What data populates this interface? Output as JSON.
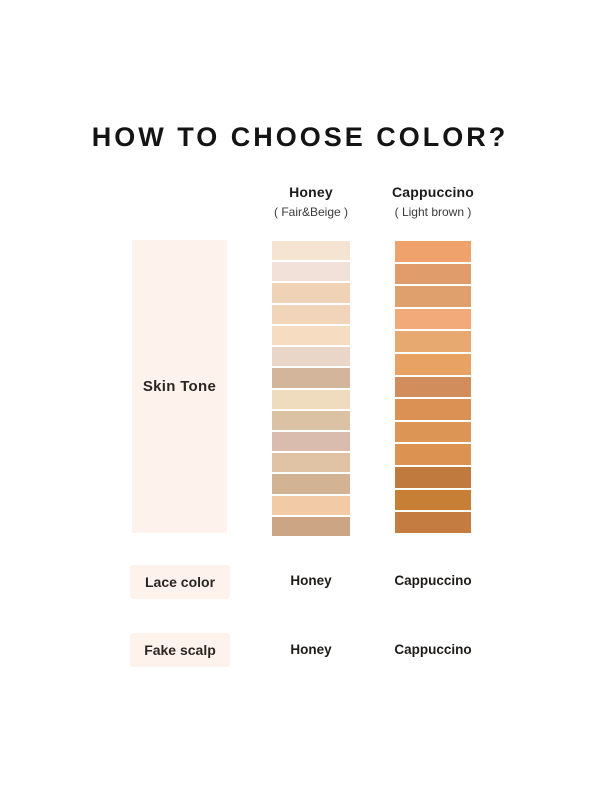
{
  "title": "HOW TO CHOOSE COLOR?",
  "columns": [
    {
      "name": "Honey",
      "subtitle": "( Fair&Beige )",
      "swatches": [
        "#F4E4D1",
        "#F2E1D9",
        "#F0D2B7",
        "#F1D4BA",
        "#F6DCC1",
        "#E9D6C8",
        "#D2B59A",
        "#EFDCBE",
        "#DCC2A5",
        "#D9BCAE",
        "#DFC3A4",
        "#D2B394",
        "#F2CBA6",
        "#CBA584"
      ]
    },
    {
      "name": "Cappuccino",
      "subtitle": "( Light brown )",
      "swatches": [
        "#EFA26B",
        "#E19C6C",
        "#E0A06E",
        "#F2AA7A",
        "#E8A970",
        "#E7A264",
        "#D18D5C",
        "#DC9154",
        "#DD9556",
        "#DC9352",
        "#C07A3E",
        "#C67F35",
        "#C57C41"
      ]
    }
  ],
  "rows": {
    "skin_tone": {
      "label": "Skin Tone"
    },
    "lace_color": {
      "label": "Lace color",
      "honey_value": "Honey",
      "cappuccino_value": "Cappuccino"
    },
    "fake_scalp": {
      "label": "Fake scalp",
      "honey_value": "Honey",
      "cappuccino_value": "Cappuccino"
    }
  },
  "colors": {
    "background": "#FFFFFF",
    "panel_bg": "#FDF3EC",
    "title_text": "#141414",
    "label_text": "#2B2522"
  }
}
